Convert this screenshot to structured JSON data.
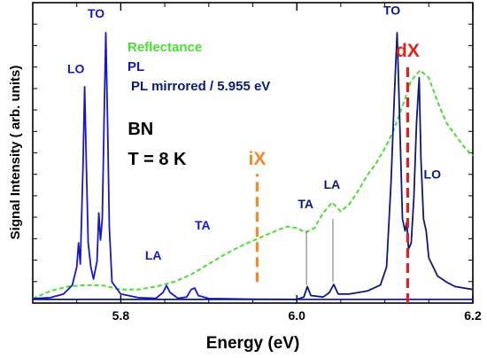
{
  "chart_data": {
    "type": "line",
    "xlabel": "Energy (eV)",
    "ylabel": "Signal Intensity ( arb. units)",
    "xlim": [
      5.7,
      6.2
    ],
    "ylim": [
      0,
      1
    ],
    "x_ticks": [
      5.8,
      6.0,
      6.2
    ],
    "x_tick_labels": [
      "5.8",
      "6.0",
      "6.2"
    ],
    "y_minor_tick_count": 13,
    "grid": false,
    "legend_position": "top-left",
    "colors": {
      "reflectance": "#4cdd33",
      "pl": "#1616cc",
      "pl_mirrored": "#0b1a7a",
      "ix": "#f08a2a",
      "dx": "#dd2222",
      "marker": "#8a8a8a"
    },
    "series": [
      {
        "name": "Reflectance",
        "style": "dashed",
        "points": [
          [
            5.7,
            0.015
          ],
          [
            5.72,
            0.04
          ],
          [
            5.74,
            0.055
          ],
          [
            5.76,
            0.06
          ],
          [
            5.78,
            0.058
          ],
          [
            5.8,
            0.045
          ],
          [
            5.82,
            0.045
          ],
          [
            5.84,
            0.055
          ],
          [
            5.86,
            0.07
          ],
          [
            5.88,
            0.095
          ],
          [
            5.9,
            0.13
          ],
          [
            5.92,
            0.165
          ],
          [
            5.94,
            0.195
          ],
          [
            5.96,
            0.22
          ],
          [
            5.98,
            0.245
          ],
          [
            5.99,
            0.255
          ],
          [
            6.0,
            0.25
          ],
          [
            6.01,
            0.235
          ],
          [
            6.02,
            0.25
          ],
          [
            6.03,
            0.3
          ],
          [
            6.04,
            0.335
          ],
          [
            6.05,
            0.305
          ],
          [
            6.06,
            0.33
          ],
          [
            6.07,
            0.375
          ],
          [
            6.08,
            0.425
          ],
          [
            6.09,
            0.465
          ],
          [
            6.1,
            0.515
          ],
          [
            6.11,
            0.575
          ],
          [
            6.12,
            0.655
          ],
          [
            6.13,
            0.74
          ],
          [
            6.14,
            0.775
          ],
          [
            6.15,
            0.75
          ],
          [
            6.16,
            0.67
          ],
          [
            6.17,
            0.6
          ],
          [
            6.18,
            0.56
          ],
          [
            6.19,
            0.52
          ],
          [
            6.2,
            0.49
          ]
        ]
      },
      {
        "name": "PL",
        "style": "solid",
        "points": [
          [
            5.7,
            0.015
          ],
          [
            5.72,
            0.018
          ],
          [
            5.735,
            0.03
          ],
          [
            5.745,
            0.06
          ],
          [
            5.75,
            0.12
          ],
          [
            5.752,
            0.2
          ],
          [
            5.754,
            0.13
          ],
          [
            5.757,
            0.45
          ],
          [
            5.759,
            0.72
          ],
          [
            5.761,
            0.45
          ],
          [
            5.763,
            0.2
          ],
          [
            5.766,
            0.12
          ],
          [
            5.769,
            0.08
          ],
          [
            5.773,
            0.14
          ],
          [
            5.775,
            0.3
          ],
          [
            5.777,
            0.21
          ],
          [
            5.779,
            0.28
          ],
          [
            5.781,
            0.6
          ],
          [
            5.783,
            0.9
          ],
          [
            5.785,
            0.6
          ],
          [
            5.787,
            0.25
          ],
          [
            5.79,
            0.07
          ],
          [
            5.8,
            0.03
          ],
          [
            5.82,
            0.018
          ],
          [
            5.84,
            0.016
          ],
          [
            5.848,
            0.035
          ],
          [
            5.852,
            0.058
          ],
          [
            5.856,
            0.035
          ],
          [
            5.865,
            0.016
          ],
          [
            5.875,
            0.02
          ],
          [
            5.88,
            0.045
          ],
          [
            5.884,
            0.05
          ],
          [
            5.888,
            0.025
          ],
          [
            5.9,
            0.015
          ],
          [
            5.95,
            0.013
          ],
          [
            6.0,
            0.012
          ],
          [
            6.2,
            0.012
          ]
        ]
      },
      {
        "name": "PL mirrored / 5.955 eV",
        "style": "solid",
        "points": [
          [
            5.7,
            0.012
          ],
          [
            6.0,
            0.012
          ],
          [
            6.008,
            0.02
          ],
          [
            6.012,
            0.055
          ],
          [
            6.016,
            0.025
          ],
          [
            6.03,
            0.02
          ],
          [
            6.037,
            0.035
          ],
          [
            6.042,
            0.062
          ],
          [
            6.047,
            0.03
          ],
          [
            6.06,
            0.03
          ],
          [
            6.08,
            0.04
          ],
          [
            6.095,
            0.06
          ],
          [
            6.102,
            0.12
          ],
          [
            6.107,
            0.4
          ],
          [
            6.111,
            0.7
          ],
          [
            6.114,
            0.9
          ],
          [
            6.117,
            0.6
          ],
          [
            6.12,
            0.28
          ],
          [
            6.123,
            0.24
          ],
          [
            6.125,
            0.27
          ],
          [
            6.127,
            0.18
          ],
          [
            6.13,
            0.2
          ],
          [
            6.133,
            0.35
          ],
          [
            6.136,
            0.6
          ],
          [
            6.139,
            0.75
          ],
          [
            6.141,
            0.48
          ],
          [
            6.144,
            0.28
          ],
          [
            6.147,
            0.24
          ],
          [
            6.15,
            0.15
          ],
          [
            6.16,
            0.09
          ],
          [
            6.17,
            0.07
          ],
          [
            6.18,
            0.055
          ],
          [
            6.2,
            0.045
          ]
        ]
      }
    ],
    "legend": [
      {
        "label": "Reflectance",
        "color": "#4cdd33"
      },
      {
        "label": "PL",
        "color": "#1616cc"
      },
      {
        "label": "PL mirrored / 5.955 eV",
        "color": "#0b1a7a"
      }
    ],
    "annotations": [
      {
        "text": "LO",
        "x": 5.749,
        "y": 0.765,
        "color": "#1616cc"
      },
      {
        "text": "TO",
        "x": 5.772,
        "y": 0.95,
        "color": "#1616cc"
      },
      {
        "text": "LA",
        "x": 5.837,
        "y": 0.145,
        "color": "#1616cc"
      },
      {
        "text": "TA",
        "x": 5.893,
        "y": 0.245,
        "color": "#1616cc"
      },
      {
        "text": "TA",
        "x": 6.01,
        "y": 0.315,
        "color": "#0b1a7a"
      },
      {
        "text": "LA",
        "x": 6.04,
        "y": 0.38,
        "color": "#0b1a7a"
      },
      {
        "text": "TO",
        "x": 6.108,
        "y": 0.96,
        "color": "#0b1a7a"
      },
      {
        "text": "LO",
        "x": 6.154,
        "y": 0.415,
        "color": "#0b1a7a"
      }
    ],
    "text_labels": [
      {
        "text": "BN",
        "x": 5.808,
        "y": 0.56
      },
      {
        "text": "T = 8 K",
        "x": 5.808,
        "y": 0.46
      }
    ],
    "vlines": [
      {
        "label": "iX",
        "x": 5.955,
        "y_from": 0.07,
        "y_to": 0.43,
        "color": "#f08a2a",
        "style": "dashed"
      },
      {
        "label": "dX",
        "x": 6.126,
        "y_from": 0.0,
        "y_to": 0.79,
        "color": "#dd2222",
        "style": "dashed"
      }
    ],
    "markers": [
      {
        "x": 6.011,
        "y_from": 0.06,
        "y_to": 0.24
      },
      {
        "x": 6.041,
        "y_from": 0.07,
        "y_to": 0.28
      }
    ]
  }
}
